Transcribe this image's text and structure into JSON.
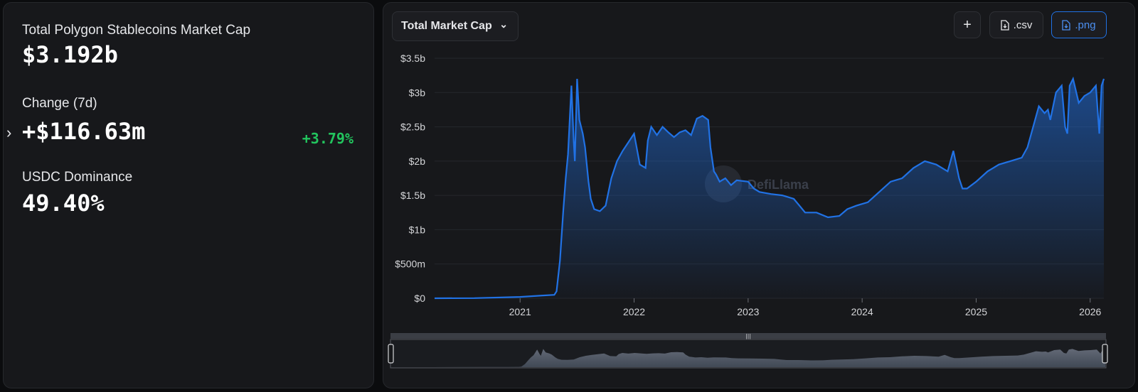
{
  "summary": {
    "mcap_label": "Total Polygon Stablecoins Market Cap",
    "mcap_value": "$3.192b",
    "change_label": "Change (7d)",
    "change_value": "+$116.63m",
    "change_pct": "+3.79%",
    "dominance_label": "USDC Dominance",
    "dominance_value": "49.40%"
  },
  "toolbar": {
    "dropdown_label": "Total Market Cap",
    "add_label": "+",
    "csv_label": ".csv",
    "png_label": ".png"
  },
  "watermark": "DefiLlama",
  "colors": {
    "line": "#2172e5",
    "positive": "#22c55e",
    "panel": "#17181b"
  },
  "chart_data": {
    "type": "area",
    "series": [
      {
        "x": [
          2020.25,
          2020.6,
          2021.0,
          2021.2,
          2021.3,
          2021.32,
          2021.35,
          2021.38,
          2021.4,
          2021.42,
          2021.45,
          2021.47,
          2021.48,
          2021.5,
          2021.52,
          2021.55,
          2021.57,
          2021.6,
          2021.62,
          2021.65,
          2021.7,
          2021.75,
          2021.8,
          2021.85,
          2021.9,
          2022.0,
          2022.05,
          2022.1,
          2022.12,
          2022.15,
          2022.2,
          2022.25,
          2022.3,
          2022.35,
          2022.4,
          2022.45,
          2022.5,
          2022.55,
          2022.6,
          2022.65,
          2022.67,
          2022.7,
          2022.72,
          2022.75,
          2022.8,
          2022.85,
          2022.9,
          2023.0,
          2023.05,
          2023.1,
          2023.2,
          2023.3,
          2023.4,
          2023.45,
          2023.5,
          2023.6,
          2023.7,
          2023.8,
          2023.87,
          2023.95,
          2024.05,
          2024.15,
          2024.25,
          2024.35,
          2024.45,
          2024.55,
          2024.65,
          2024.75,
          2024.8,
          2024.85,
          2024.88,
          2024.92,
          2025.0,
          2025.1,
          2025.2,
          2025.3,
          2025.4,
          2025.45,
          2025.5,
          2025.55,
          2025.6,
          2025.63,
          2025.65,
          2025.7,
          2025.75,
          2025.78,
          2025.8,
          2025.82,
          2025.85,
          2025.9,
          2025.95,
          2026.0,
          2026.05,
          2026.08,
          2026.1,
          2026.12
        ],
        "y": [
          0,
          0.002,
          0.02,
          0.04,
          0.05,
          0.1,
          0.55,
          1.3,
          1.75,
          2.1,
          3.1,
          2.3,
          2.0,
          3.2,
          2.6,
          2.4,
          2.2,
          1.7,
          1.45,
          1.3,
          1.27,
          1.35,
          1.75,
          2.0,
          2.15,
          2.4,
          1.95,
          1.9,
          2.3,
          2.5,
          2.38,
          2.5,
          2.42,
          2.35,
          2.42,
          2.45,
          2.38,
          2.62,
          2.66,
          2.6,
          2.2,
          1.85,
          1.8,
          1.7,
          1.75,
          1.65,
          1.72,
          1.7,
          1.6,
          1.55,
          1.52,
          1.5,
          1.45,
          1.35,
          1.25,
          1.25,
          1.18,
          1.2,
          1.3,
          1.35,
          1.4,
          1.55,
          1.7,
          1.75,
          1.9,
          2.0,
          1.95,
          1.85,
          2.15,
          1.75,
          1.6,
          1.6,
          1.7,
          1.85,
          1.95,
          2.0,
          2.05,
          2.2,
          2.5,
          2.8,
          2.7,
          2.75,
          2.6,
          3.0,
          3.1,
          2.5,
          2.4,
          3.1,
          3.2,
          2.85,
          2.95,
          3.0,
          3.1,
          2.4,
          3.1,
          3.2
        ]
      }
    ],
    "xticks": [
      "2021",
      "2022",
      "2023",
      "2024",
      "2025",
      "2026"
    ],
    "xtick_values": [
      2021,
      2022,
      2023,
      2024,
      2025,
      2026
    ],
    "yticks": [
      "$0",
      "$500m",
      "$1b",
      "$1.5b",
      "$2b",
      "$2.5b",
      "$3b",
      "$3.5b"
    ],
    "ytick_values": [
      0,
      0.5,
      1,
      1.5,
      2,
      2.5,
      3,
      3.5
    ],
    "xlim": [
      2020.25,
      2026.12
    ],
    "ylim": [
      0,
      3.5
    ],
    "grid": true
  }
}
